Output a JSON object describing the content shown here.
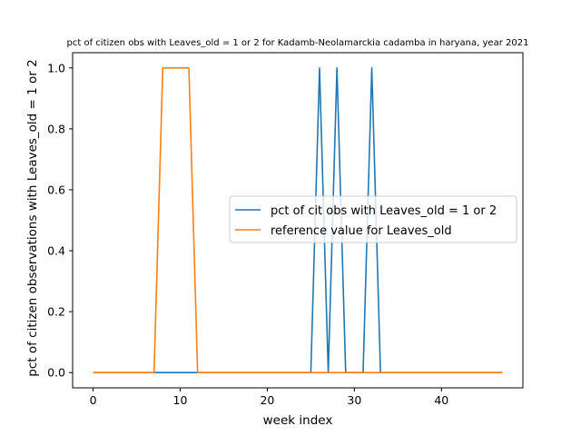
{
  "chart_data": {
    "type": "line",
    "title": "pct of citizen obs with Leaves_old = 1 or 2 for Kadamb-Neolamarckia cadamba in haryana, year 2021",
    "xlabel": "week index",
    "ylabel": "pct of citizen observations with Leaves_old = 1 or 2",
    "xlim": [
      -2.35,
      49.35
    ],
    "ylim": [
      -0.05,
      1.05
    ],
    "xticks": [
      0,
      10,
      20,
      30,
      40
    ],
    "yticks": [
      0.0,
      0.2,
      0.4,
      0.6,
      0.8,
      1.0
    ],
    "xtick_labels": [
      "0",
      "10",
      "20",
      "30",
      "40"
    ],
    "ytick_labels": [
      "0.0",
      "0.2",
      "0.4",
      "0.6",
      "0.8",
      "1.0"
    ],
    "grid": false,
    "legend_position": "center-right",
    "x": [
      0,
      1,
      2,
      3,
      4,
      5,
      6,
      7,
      8,
      9,
      10,
      11,
      12,
      13,
      14,
      15,
      16,
      17,
      18,
      19,
      20,
      21,
      22,
      23,
      24,
      25,
      26,
      27,
      28,
      29,
      30,
      31,
      32,
      33,
      34,
      35,
      36,
      37,
      38,
      39,
      40,
      41,
      42,
      43,
      44,
      45,
      46,
      47
    ],
    "series": [
      {
        "name": "pct of cit obs with Leaves_old = 1 or 2",
        "color": "#1f77b4",
        "values": [
          0,
          0,
          0,
          0,
          0,
          0,
          0,
          0,
          0,
          0,
          0,
          0,
          0,
          0,
          0,
          0,
          0,
          0,
          0,
          0,
          0,
          0,
          0,
          0,
          0,
          0,
          1,
          0,
          1,
          0,
          0,
          0,
          1,
          0,
          0,
          0,
          0,
          0,
          0,
          0,
          0,
          0,
          0,
          0,
          0,
          0,
          0,
          0
        ]
      },
      {
        "name": "reference value for Leaves_old",
        "color": "#ff7f0e",
        "values": [
          0,
          0,
          0,
          0,
          0,
          0,
          0,
          0,
          1,
          1,
          1,
          1,
          0,
          0,
          0,
          0,
          0,
          0,
          0,
          0,
          0,
          0,
          0,
          0,
          0,
          0,
          0,
          0,
          0,
          0,
          0,
          0,
          0,
          0,
          0,
          0,
          0,
          0,
          0,
          0,
          0,
          0,
          0,
          0,
          0,
          0,
          0,
          0
        ]
      }
    ]
  }
}
